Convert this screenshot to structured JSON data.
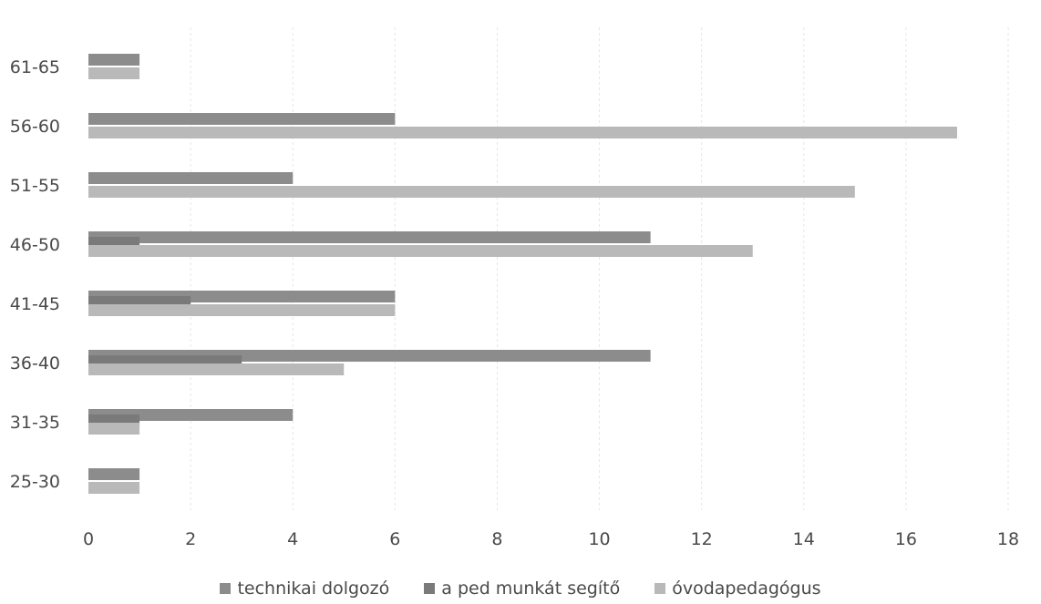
{
  "chart_data": {
    "type": "bar",
    "orientation": "horizontal",
    "categories": [
      "25-30",
      "31-35",
      "36-40",
      "41-45",
      "46-50",
      "51-55",
      "56-60",
      "61-65"
    ],
    "series": [
      {
        "name": "technikai dolgozó",
        "values": [
          1,
          4,
          11,
          6,
          11,
          4,
          6,
          1
        ],
        "color": "#8c8c8c"
      },
      {
        "name": "a ped munkát segítő",
        "values": [
          0,
          1,
          3,
          2,
          1,
          0,
          0,
          0
        ],
        "color": "#7a7a7a"
      },
      {
        "name": "óvodapedagógus",
        "values": [
          1,
          1,
          5,
          6,
          13,
          15,
          17,
          1
        ],
        "color": "#b9b9b9"
      }
    ],
    "xlim": [
      0,
      18
    ],
    "x_ticks": [
      0,
      2,
      4,
      6,
      8,
      10,
      12,
      14,
      16,
      18
    ],
    "grid": true,
    "legend_position": "bottom"
  }
}
